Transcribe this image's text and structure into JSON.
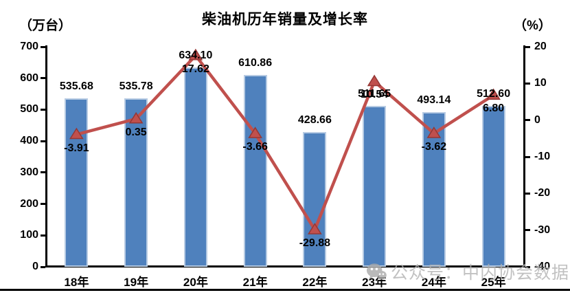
{
  "chart_data": {
    "type": "combo",
    "title": "柴油机历年销量及增长率",
    "categories": [
      "18年",
      "19年",
      "20年",
      "21年",
      "22年",
      "23年",
      "24年",
      "25年"
    ],
    "series": [
      {
        "name": "销量",
        "type": "bar",
        "axis": "left",
        "color": "#4f81bd",
        "border_color": "#b7cbe3",
        "values": [
          535.68,
          535.78,
          634.1,
          610.86,
          428.66,
          511.65,
          493.14,
          512.6
        ]
      },
      {
        "name": "增长率",
        "type": "line",
        "axis": "right",
        "color": "#c0504d",
        "marker": "triangle",
        "marker_edge_color": "#953735",
        "values": [
          -3.91,
          0.35,
          17.62,
          -3.66,
          -29.88,
          10.54,
          -3.62,
          6.8
        ]
      }
    ],
    "left_axis": {
      "label": "（万台）",
      "min": 0,
      "max": 700,
      "step": 100
    },
    "right_axis": {
      "label": "（%）",
      "min": -40,
      "max": 20,
      "step": 10
    },
    "grid": false,
    "legend": "none",
    "data_labels": true,
    "label_decimals": 2
  },
  "watermark": {
    "icon": "wechat-icon",
    "text": "公众号：中内协会数据"
  }
}
